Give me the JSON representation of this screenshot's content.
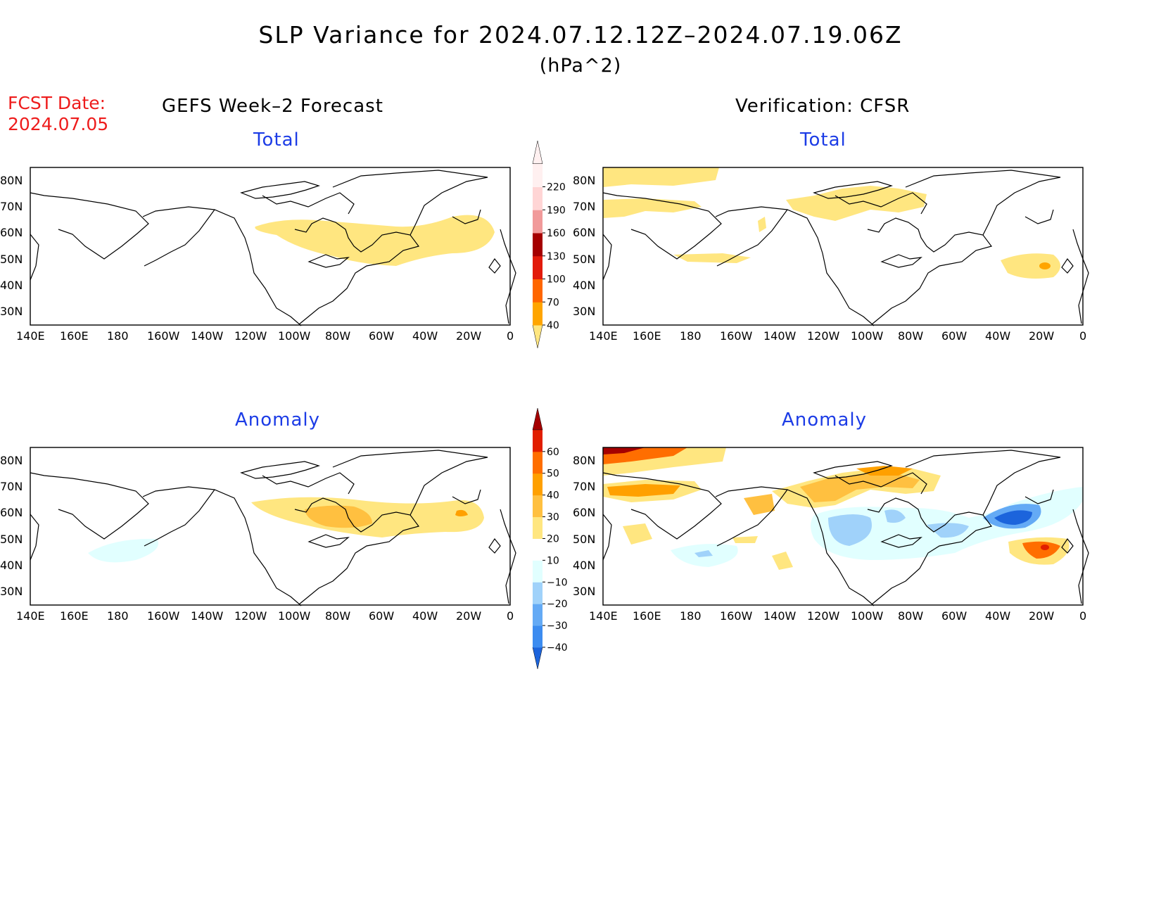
{
  "title": "SLP Variance for 2024.07.12.12Z–2024.07.19.06Z",
  "units": "(hPa^2)",
  "forecast_date": {
    "label": "FCST Date:",
    "value": "2024.07.05"
  },
  "left_column": {
    "heading": "GEFS Week–2 Forecast",
    "total_label": "Total",
    "anomaly_label": "Anomaly"
  },
  "right_column": {
    "heading": "Verification: CFSR",
    "total_label": "Total",
    "anomaly_label": "Anomaly"
  },
  "axes": {
    "lat_labels": [
      "80N",
      "70N",
      "60N",
      "50N",
      "40N",
      "30N"
    ],
    "lon_labels": [
      "140E",
      "160E",
      "180",
      "160W",
      "140W",
      "120W",
      "100W",
      "80W",
      "60W",
      "40W",
      "20W",
      "0"
    ]
  },
  "colorbar_total": {
    "levels": [
      "40",
      "70",
      "100",
      "130",
      "160",
      "190",
      "220"
    ],
    "colors": [
      "#ffe680",
      "#ffa500",
      "#ff6600",
      "#e21b0b",
      "#a50000",
      "#f19a9a",
      "#ffd5d5",
      "#fff0f0"
    ]
  },
  "colorbar_anomaly": {
    "levels": [
      "−40",
      "−30",
      "−20",
      "−10",
      "10",
      "20",
      "30",
      "40",
      "50",
      "60"
    ],
    "colors": [
      "#1c64dc",
      "#3c8cf0",
      "#64aaf5",
      "#a0d2fa",
      "#e1ffff",
      "#ffffff",
      "#ffe680",
      "#ffc040",
      "#ffa000",
      "#ff6e00",
      "#e11e00",
      "#a50000"
    ]
  }
}
